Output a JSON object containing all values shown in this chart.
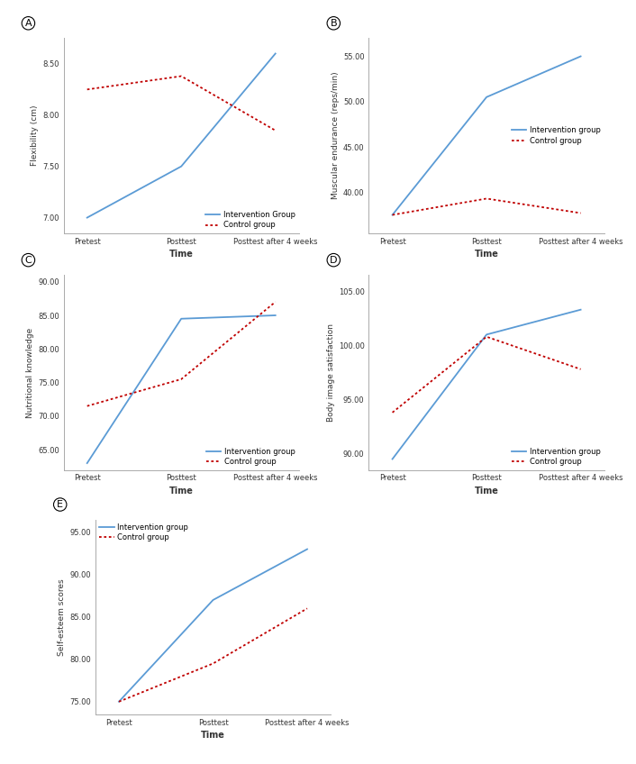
{
  "panel_A": {
    "label": "A",
    "ylabel": "Flexibility (cm)",
    "intervention": [
      7.0,
      7.5,
      8.6
    ],
    "control": [
      8.25,
      8.38,
      7.85
    ],
    "ylim": [
      6.85,
      8.75
    ],
    "yticks": [
      7.0,
      7.5,
      8.0,
      8.5
    ],
    "legend_loc": "lower right",
    "legend_intervention": "Intervention Group",
    "legend_control": "Control group"
  },
  "panel_B": {
    "label": "B",
    "ylabel": "Muscular endurance (reps/min)",
    "intervention": [
      37.5,
      50.5,
      55.0
    ],
    "control": [
      37.5,
      39.3,
      37.7
    ],
    "ylim": [
      35.5,
      57.0
    ],
    "yticks": [
      40.0,
      45.0,
      50.0,
      55.0
    ],
    "legend_loc": "center right",
    "legend_intervention": "Intervention group",
    "legend_control": "Control group"
  },
  "panel_C": {
    "label": "C",
    "ylabel": "Nutritional knowledge",
    "intervention": [
      63.0,
      84.5,
      85.0
    ],
    "control": [
      71.5,
      75.5,
      87.0
    ],
    "ylim": [
      62.0,
      91.0
    ],
    "yticks": [
      65.0,
      70.0,
      75.0,
      80.0,
      85.0,
      90.0
    ],
    "legend_loc": "lower right",
    "legend_intervention": "Intervention group",
    "legend_control": "Control group"
  },
  "panel_D": {
    "label": "D",
    "ylabel": "Body image satisfaction",
    "intervention": [
      89.5,
      101.0,
      103.3
    ],
    "control": [
      93.8,
      100.8,
      97.8
    ],
    "ylim": [
      88.5,
      106.5
    ],
    "yticks": [
      90.0,
      95.0,
      100.0,
      105.0
    ],
    "legend_loc": "lower right",
    "legend_intervention": "Intervention group",
    "legend_control": "Control group"
  },
  "panel_E": {
    "label": "E",
    "ylabel": "Self-esteem scores",
    "intervention": [
      75.0,
      87.0,
      93.0
    ],
    "control": [
      75.0,
      79.5,
      86.0
    ],
    "ylim": [
      73.5,
      96.5
    ],
    "yticks": [
      75.0,
      80.0,
      85.0,
      90.0,
      95.0
    ],
    "legend_loc": "upper left",
    "legend_intervention": "Intervention group",
    "legend_control": "Control group"
  },
  "x_labels": [
    "Pretest",
    "Posttest",
    "Posttest after 4 weeks"
  ],
  "xlabel": "Time",
  "color_intervention": "#5B9BD5",
  "color_control": "#C00000",
  "linewidth": 1.3,
  "fontsize_ylabel": 6.5,
  "fontsize_xlabel": 7,
  "fontsize_tick": 6,
  "fontsize_legend": 6,
  "fontsize_panel_label": 8
}
